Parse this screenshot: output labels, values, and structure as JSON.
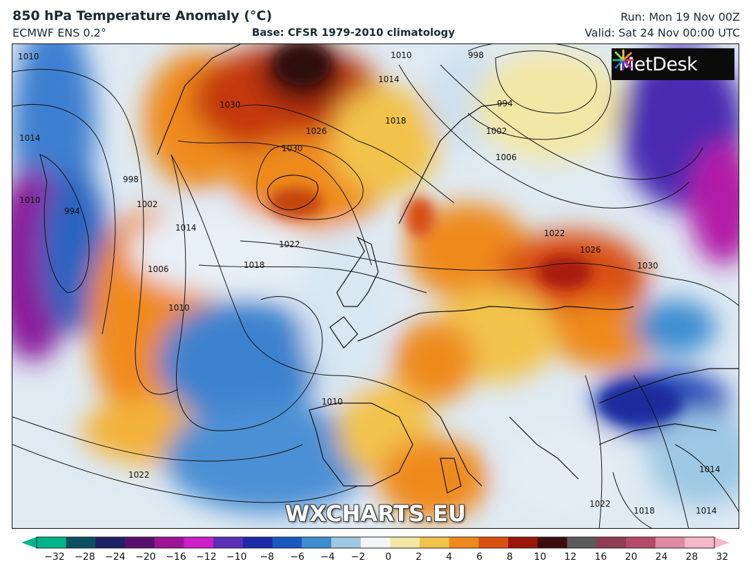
{
  "header": {
    "title": "850 hPa Temperature Anomaly (°C)",
    "model": "ECMWF ENS 0.2°",
    "base": "Base: CFSR 1979-2010 climatology",
    "run": "Run: Mon 19 Nov 00Z",
    "valid": "Valid: Sat 24 Nov 00:00 UTC"
  },
  "logo": {
    "text": "MetDesk",
    "icon": "metdesk-starburst-icon"
  },
  "watermark": "WXCHARTS.EU",
  "colorbar": {
    "ticks": [
      "−32",
      "−28",
      "−24",
      "−20",
      "−16",
      "−12",
      "−10",
      "−8",
      "−6",
      "−4",
      "−2",
      "0",
      "2",
      "4",
      "6",
      "8",
      "10",
      "12",
      "16",
      "20",
      "24",
      "28",
      "32"
    ],
    "colors": [
      "#00b58c",
      "#0b4f5e",
      "#1f1f66",
      "#5a0f6e",
      "#9a1494",
      "#cc1ec9",
      "#5b2fb5",
      "#1e2aa8",
      "#1b59c2",
      "#3e8dd0",
      "#9ec8e4",
      "#f3f5f8",
      "#f3e7a6",
      "#f2c34b",
      "#ee8a1c",
      "#d95012",
      "#9b1508",
      "#3d0c0c",
      "#5b5b5b",
      "#8f3c52",
      "#b5476b",
      "#e08aa4",
      "#f6b7c9"
    ]
  },
  "isobar_labels": [
    "1010",
    "1010",
    "1014",
    "998",
    "994",
    "1002",
    "1006",
    "1018",
    "1014",
    "1030",
    "1026",
    "1030",
    "1022",
    "1018",
    "1014",
    "998",
    "1002",
    "994",
    "1006",
    "1010",
    "1010",
    "1006",
    "1002",
    "1022",
    "1026",
    "1030",
    "1010",
    "1022",
    "1022",
    "1018",
    "1014",
    "1014"
  ],
  "map": {
    "description_colors": {
      "warm": "#ee8a1c",
      "hot": "#9b1508",
      "cold": "#1e5ab4",
      "very_cold": "#9a1494"
    }
  }
}
